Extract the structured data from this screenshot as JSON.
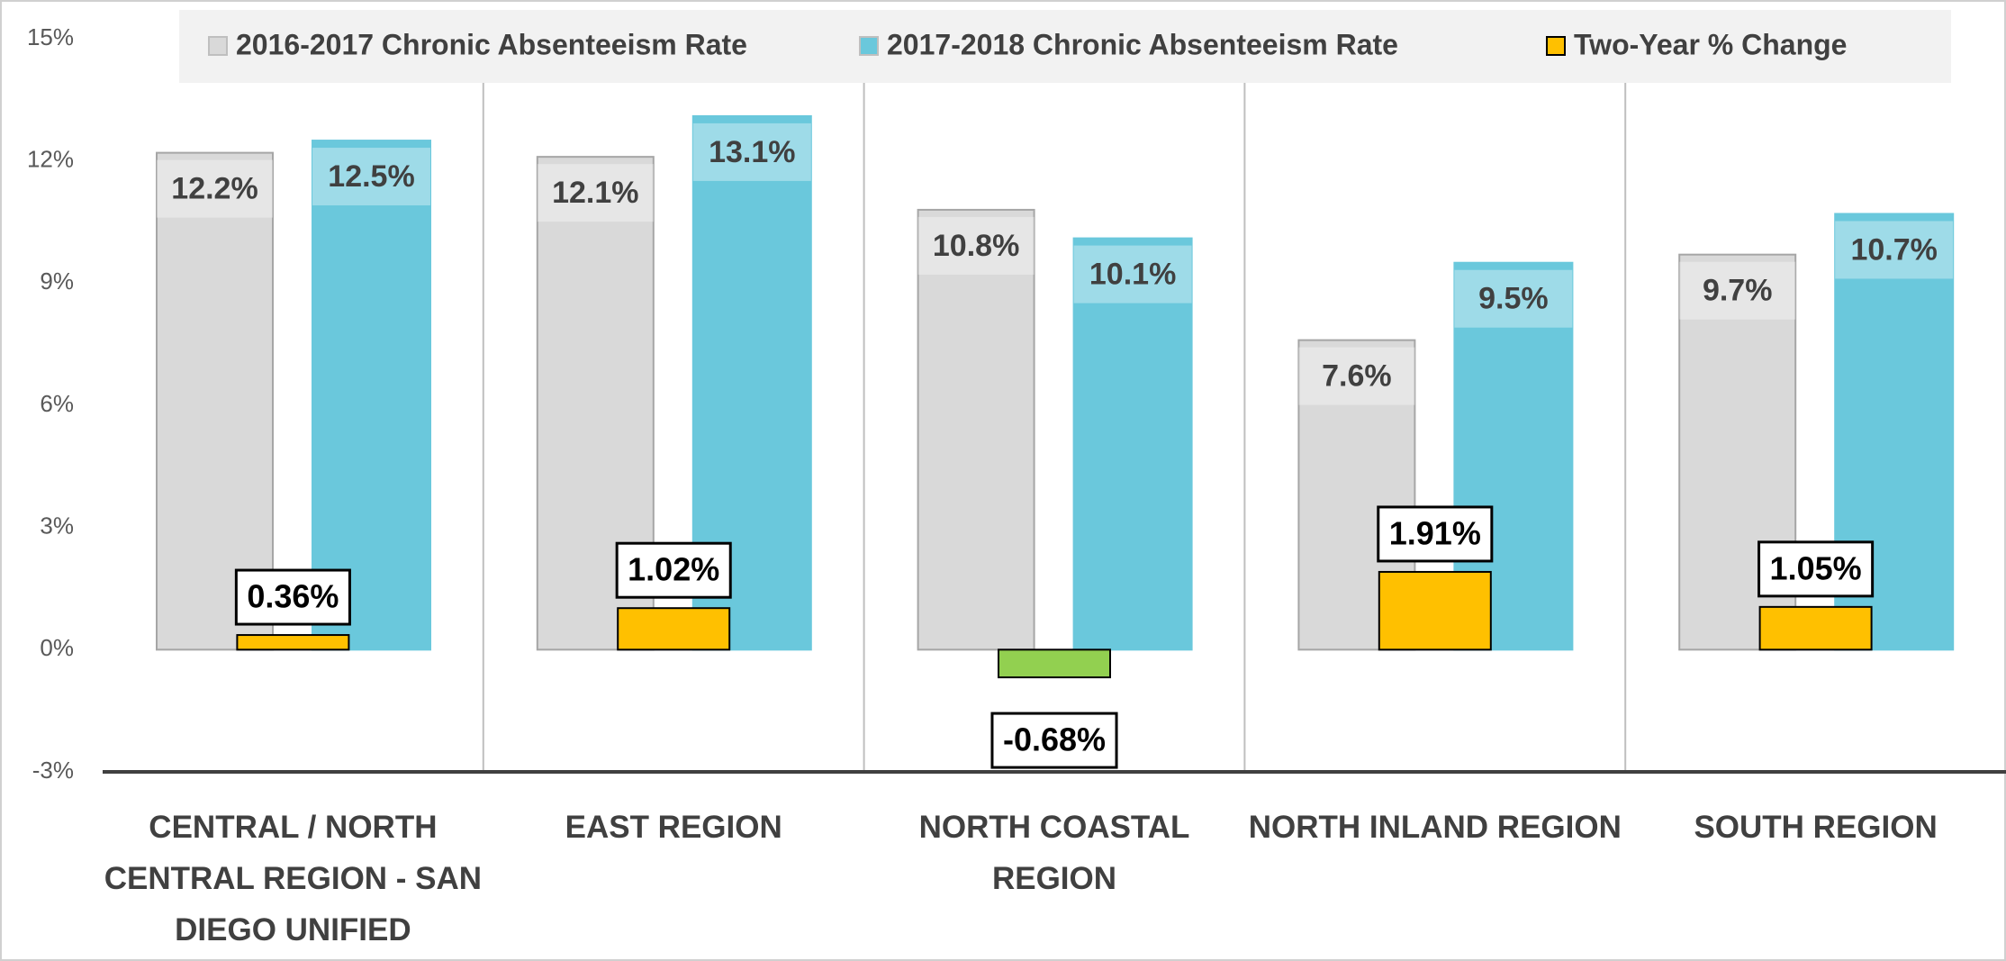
{
  "chart_data": {
    "type": "bar",
    "categories": [
      "CENTRAL / NORTH CENTRAL REGION - SAN DIEGO UNIFIED",
      "EAST REGION",
      "NORTH COASTAL REGION",
      "NORTH INLAND REGION",
      "SOUTH REGION"
    ],
    "series": [
      {
        "name": "2016-2017 Chronic Absenteeism Rate",
        "color": "#d9d9d9",
        "values": [
          12.2,
          12.1,
          10.8,
          7.6,
          9.7
        ],
        "value_labels": [
          "12.2%",
          "12.1%",
          "10.8%",
          "7.6%",
          "9.7%"
        ]
      },
      {
        "name": "2017-2018 Chronic Absenteeism Rate",
        "color": "#6ac8dc",
        "values": [
          12.5,
          13.1,
          10.1,
          9.5,
          10.7
        ],
        "value_labels": [
          "12.5%",
          "13.1%",
          "10.1%",
          "9.5%",
          "10.7%"
        ]
      },
      {
        "name": "Two-Year % Change",
        "color": "#ffc000",
        "negative_color": "#92d050",
        "values": [
          0.36,
          1.02,
          -0.68,
          1.91,
          1.05
        ],
        "value_labels": [
          "0.36%",
          "1.02%",
          "-0.68%",
          "1.91%",
          "1.05%"
        ]
      }
    ],
    "ylim": [
      -3,
      15
    ],
    "yticks": [
      {
        "value": -3,
        "label": "-3%"
      },
      {
        "value": 0,
        "label": "0%"
      },
      {
        "value": 3,
        "label": "3%"
      },
      {
        "value": 6,
        "label": "6%"
      },
      {
        "value": 9,
        "label": "9%"
      },
      {
        "value": 12,
        "label": "12%"
      },
      {
        "value": 15,
        "label": "15%"
      }
    ],
    "grid": false
  }
}
